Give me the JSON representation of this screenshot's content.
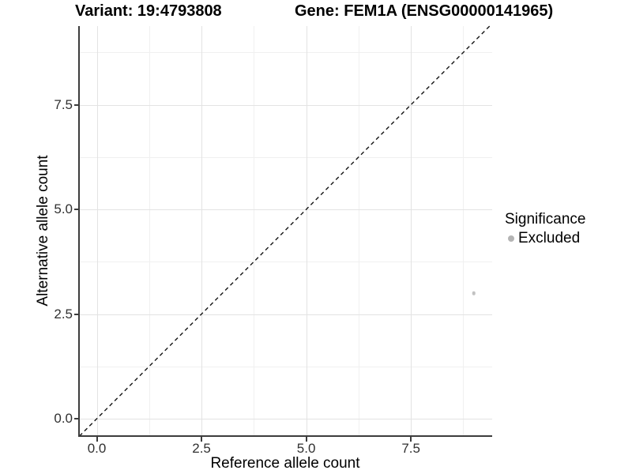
{
  "header": {
    "variant_title": "Variant: 19:4793808",
    "gene_title": "Gene: FEM1A (ENSG00000141965)"
  },
  "legend": {
    "title": "Significance",
    "items": [
      {
        "label": "Excluded",
        "color": "#b4b4b4"
      }
    ]
  },
  "chart_data": {
    "type": "scatter",
    "titles": [
      "Variant: 19:4793808",
      "Gene: FEM1A (ENSG00000141965)"
    ],
    "xlabel": "Reference allele count",
    "ylabel": "Alternative allele count",
    "xlim": [
      -0.425,
      9.44
    ],
    "ylim": [
      -0.415,
      9.38
    ],
    "x_ticks": [
      {
        "value": 0,
        "label": "0.0"
      },
      {
        "value": 2.5,
        "label": "2.5"
      },
      {
        "value": 5,
        "label": "5.0"
      },
      {
        "value": 7.5,
        "label": "7.5"
      }
    ],
    "y_ticks": [
      {
        "value": 0,
        "label": "0.0"
      },
      {
        "value": 2.5,
        "label": "2.5"
      },
      {
        "value": 5,
        "label": "5.0"
      },
      {
        "value": 7.5,
        "label": "7.5"
      }
    ],
    "x_minor_ticks": [
      1.25,
      3.75,
      6.25,
      8.75
    ],
    "y_minor_ticks": [
      1.25,
      3.75,
      6.25,
      8.75
    ],
    "grid": true,
    "legend_position": "right",
    "series": [
      {
        "name": "Excluded",
        "color": "#c2c2c2",
        "points": [
          {
            "x": 9,
            "y": 3
          }
        ]
      }
    ],
    "reference_line": {
      "slope": 1,
      "intercept": 0,
      "linetype": "dashed",
      "color": "#141414"
    }
  }
}
